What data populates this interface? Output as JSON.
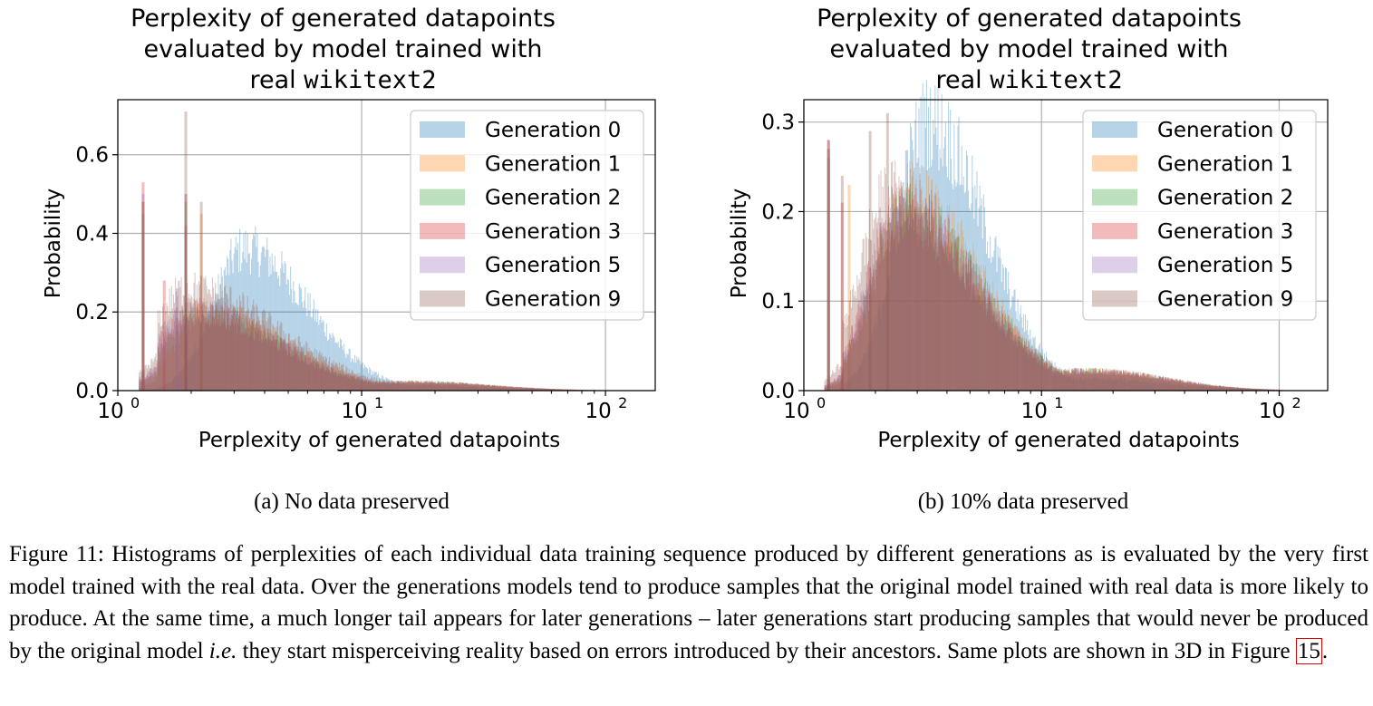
{
  "chart_data": [
    {
      "type": "histogram",
      "title_line1": "Perplexity of generated datapoints",
      "title_line2": "evaluated by model trained with",
      "title_line3_pre": "real ",
      "title_line3_mono": "wikitext2",
      "xlabel": "Perplexity of generated datapoints",
      "ylabel": "Probability",
      "xscale": "log",
      "xlim": [
        1,
        160
      ],
      "ylim": [
        0,
        0.74
      ],
      "yticks": [
        0.0,
        0.2,
        0.4,
        0.6
      ],
      "ytick_labels": [
        "0.0",
        "0.2",
        "0.4",
        "0.6"
      ],
      "xtick_labels": [
        {
          "base": "10",
          "exp": "0"
        },
        {
          "base": "10",
          "exp": "1"
        },
        {
          "base": "10",
          "exp": "2"
        }
      ],
      "grid": true,
      "legend_position": "upper-right",
      "series": [
        {
          "name": "Generation 0",
          "color": "#1f77b4",
          "mode": 3.3,
          "peak": 0.36,
          "sigma": 0.35,
          "spikes": []
        },
        {
          "name": "Generation 1",
          "color": "#ff7f0e",
          "mode": 2.3,
          "peak": 0.2,
          "sigma": 0.45,
          "spikes": [
            [
              1.27,
              0.48
            ],
            [
              1.9,
              0.5
            ],
            [
              2.2,
              0.45
            ]
          ]
        },
        {
          "name": "Generation 2",
          "color": "#2ca02c",
          "mode": 2.1,
          "peak": 0.2,
          "sigma": 0.45,
          "spikes": [
            [
              1.27,
              0.45
            ],
            [
              1.9,
              0.48
            ]
          ]
        },
        {
          "name": "Generation 3",
          "color": "#d62728",
          "mode": 2.0,
          "peak": 0.2,
          "sigma": 0.47,
          "spikes": [
            [
              1.27,
              0.53
            ],
            [
              1.55,
              0.28
            ],
            [
              1.9,
              0.42
            ]
          ]
        },
        {
          "name": "Generation 5",
          "color": "#9467bd",
          "mode": 1.95,
          "peak": 0.21,
          "sigma": 0.48,
          "spikes": [
            [
              1.27,
              0.5
            ],
            [
              1.75,
              0.26
            ],
            [
              1.9,
              0.5
            ]
          ]
        },
        {
          "name": "Generation 9",
          "color": "#8c564b",
          "mode": 1.9,
          "peak": 0.26,
          "sigma": 0.5,
          "spikes": [
            [
              1.27,
              0.48
            ],
            [
              1.9,
              0.71
            ],
            [
              2.2,
              0.48
            ]
          ]
        }
      ]
    },
    {
      "type": "histogram",
      "title_line1": "Perplexity of generated datapoints",
      "title_line2": "evaluated by model trained with",
      "title_line3_pre": "real ",
      "title_line3_mono": "wikitext2",
      "xlabel": "Perplexity of generated datapoints",
      "ylabel": "Probability",
      "xscale": "log",
      "xlim": [
        1,
        160
      ],
      "ylim": [
        0,
        0.325
      ],
      "yticks": [
        0.0,
        0.1,
        0.2,
        0.3
      ],
      "ytick_labels": [
        "0.0",
        "0.1",
        "0.2",
        "0.3"
      ],
      "xtick_labels": [
        {
          "base": "10",
          "exp": "0"
        },
        {
          "base": "10",
          "exp": "1"
        },
        {
          "base": "10",
          "exp": "2"
        }
      ],
      "grid": true,
      "legend_position": "upper-right",
      "series": [
        {
          "name": "Generation 0",
          "color": "#1f77b4",
          "mode": 3.3,
          "peak": 0.3,
          "sigma": 0.33,
          "spikes": []
        },
        {
          "name": "Generation 1",
          "color": "#ff7f0e",
          "mode": 2.7,
          "peak": 0.22,
          "sigma": 0.4,
          "spikes": [
            [
              1.27,
              0.27
            ],
            [
              1.55,
              0.23
            ]
          ]
        },
        {
          "name": "Generation 2",
          "color": "#2ca02c",
          "mode": 2.6,
          "peak": 0.2,
          "sigma": 0.42,
          "spikes": [
            [
              1.27,
              0.26
            ]
          ]
        },
        {
          "name": "Generation 3",
          "color": "#d62728",
          "mode": 2.5,
          "peak": 0.2,
          "sigma": 0.42,
          "spikes": [
            [
              1.27,
              0.28
            ],
            [
              1.45,
              0.21
            ]
          ]
        },
        {
          "name": "Generation 5",
          "color": "#9467bd",
          "mode": 2.5,
          "peak": 0.2,
          "sigma": 0.43,
          "spikes": [
            [
              1.27,
              0.27
            ]
          ]
        },
        {
          "name": "Generation 9",
          "color": "#8c564b",
          "mode": 2.3,
          "peak": 0.22,
          "sigma": 0.45,
          "spikes": [
            [
              1.27,
              0.28
            ],
            [
              1.45,
              0.24
            ],
            [
              1.9,
              0.29
            ],
            [
              2.25,
              0.31
            ]
          ]
        }
      ]
    }
  ],
  "subcaptions": [
    "(a) No data preserved",
    "(b) 10% data preserved"
  ],
  "caption": {
    "text": "Figure 11: Histograms of perplexities of each individual data training sequence produced by different generations as is evaluated by the very first model trained with the real data. Over the generations models tend to produce samples that the original model trained with real data is more likely to produce. At the same time, a much longer tail appears for later generations – later generations start producing samples that would never be produced by the original model ",
    "italic": "i.e.",
    "text2": " they start misperceiving reality based on errors introduced by their ancestors. Same plots are shown in 3D in Figure ",
    "ref": "15",
    "end": "."
  }
}
